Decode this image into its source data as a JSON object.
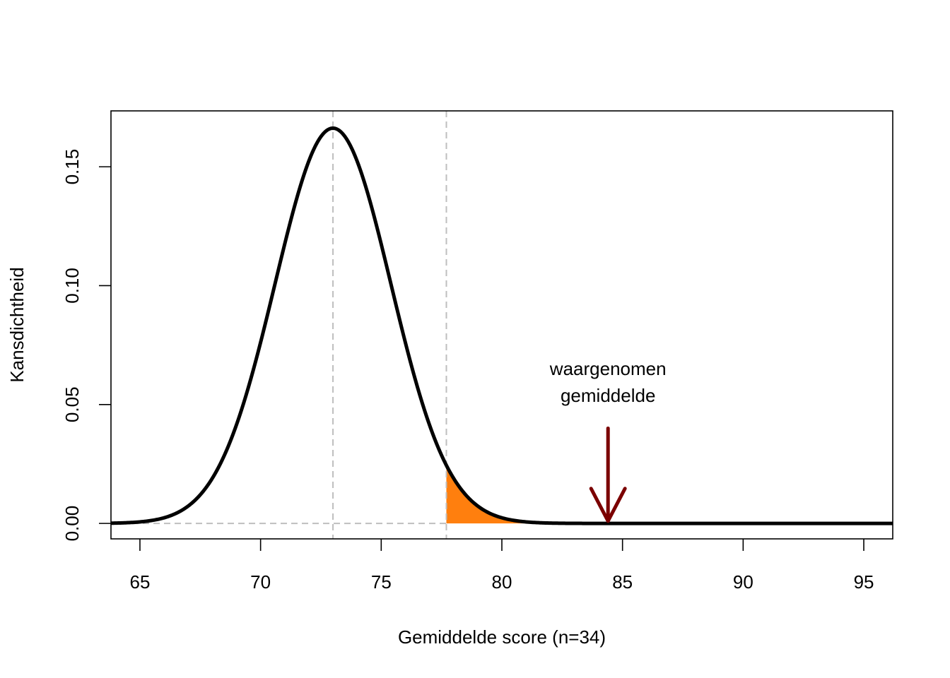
{
  "chart_data": {
    "type": "line",
    "title": "",
    "xlabel": "Gemiddelde score (n=34)",
    "ylabel": "Kansdichtheid",
    "xlim": [
      63.8,
      96.2
    ],
    "ylim": [
      -0.0065,
      0.1735
    ],
    "x_ticks": [
      65,
      70,
      75,
      80,
      85,
      90,
      95
    ],
    "x_tick_labels": [
      "65",
      "70",
      "75",
      "80",
      "85",
      "90",
      "95"
    ],
    "y_ticks": [
      0.0,
      0.05,
      0.1,
      0.15
    ],
    "y_tick_labels": [
      "0.00",
      "0.05",
      "0.10",
      "0.15"
    ],
    "grid": false,
    "legend": "none",
    "series": [
      {
        "kind": "normal-density",
        "mean": 73.0,
        "sd": 2.4,
        "color": "#000000"
      }
    ],
    "reference_lines": {
      "vertical": [
        73.0,
        77.7
      ],
      "horizontal": [
        0.0
      ],
      "color": "#bebebe"
    },
    "shaded_region": {
      "from": 77.7,
      "to": 96.2,
      "color": "#ff7f0e"
    },
    "annotation": {
      "lines": [
        "waargenomen",
        "gemiddelde"
      ],
      "arrow_x": 84.4,
      "arrow_from_y": 0.04,
      "arrow_to_y": 0.001,
      "color": "#7b0000"
    }
  }
}
